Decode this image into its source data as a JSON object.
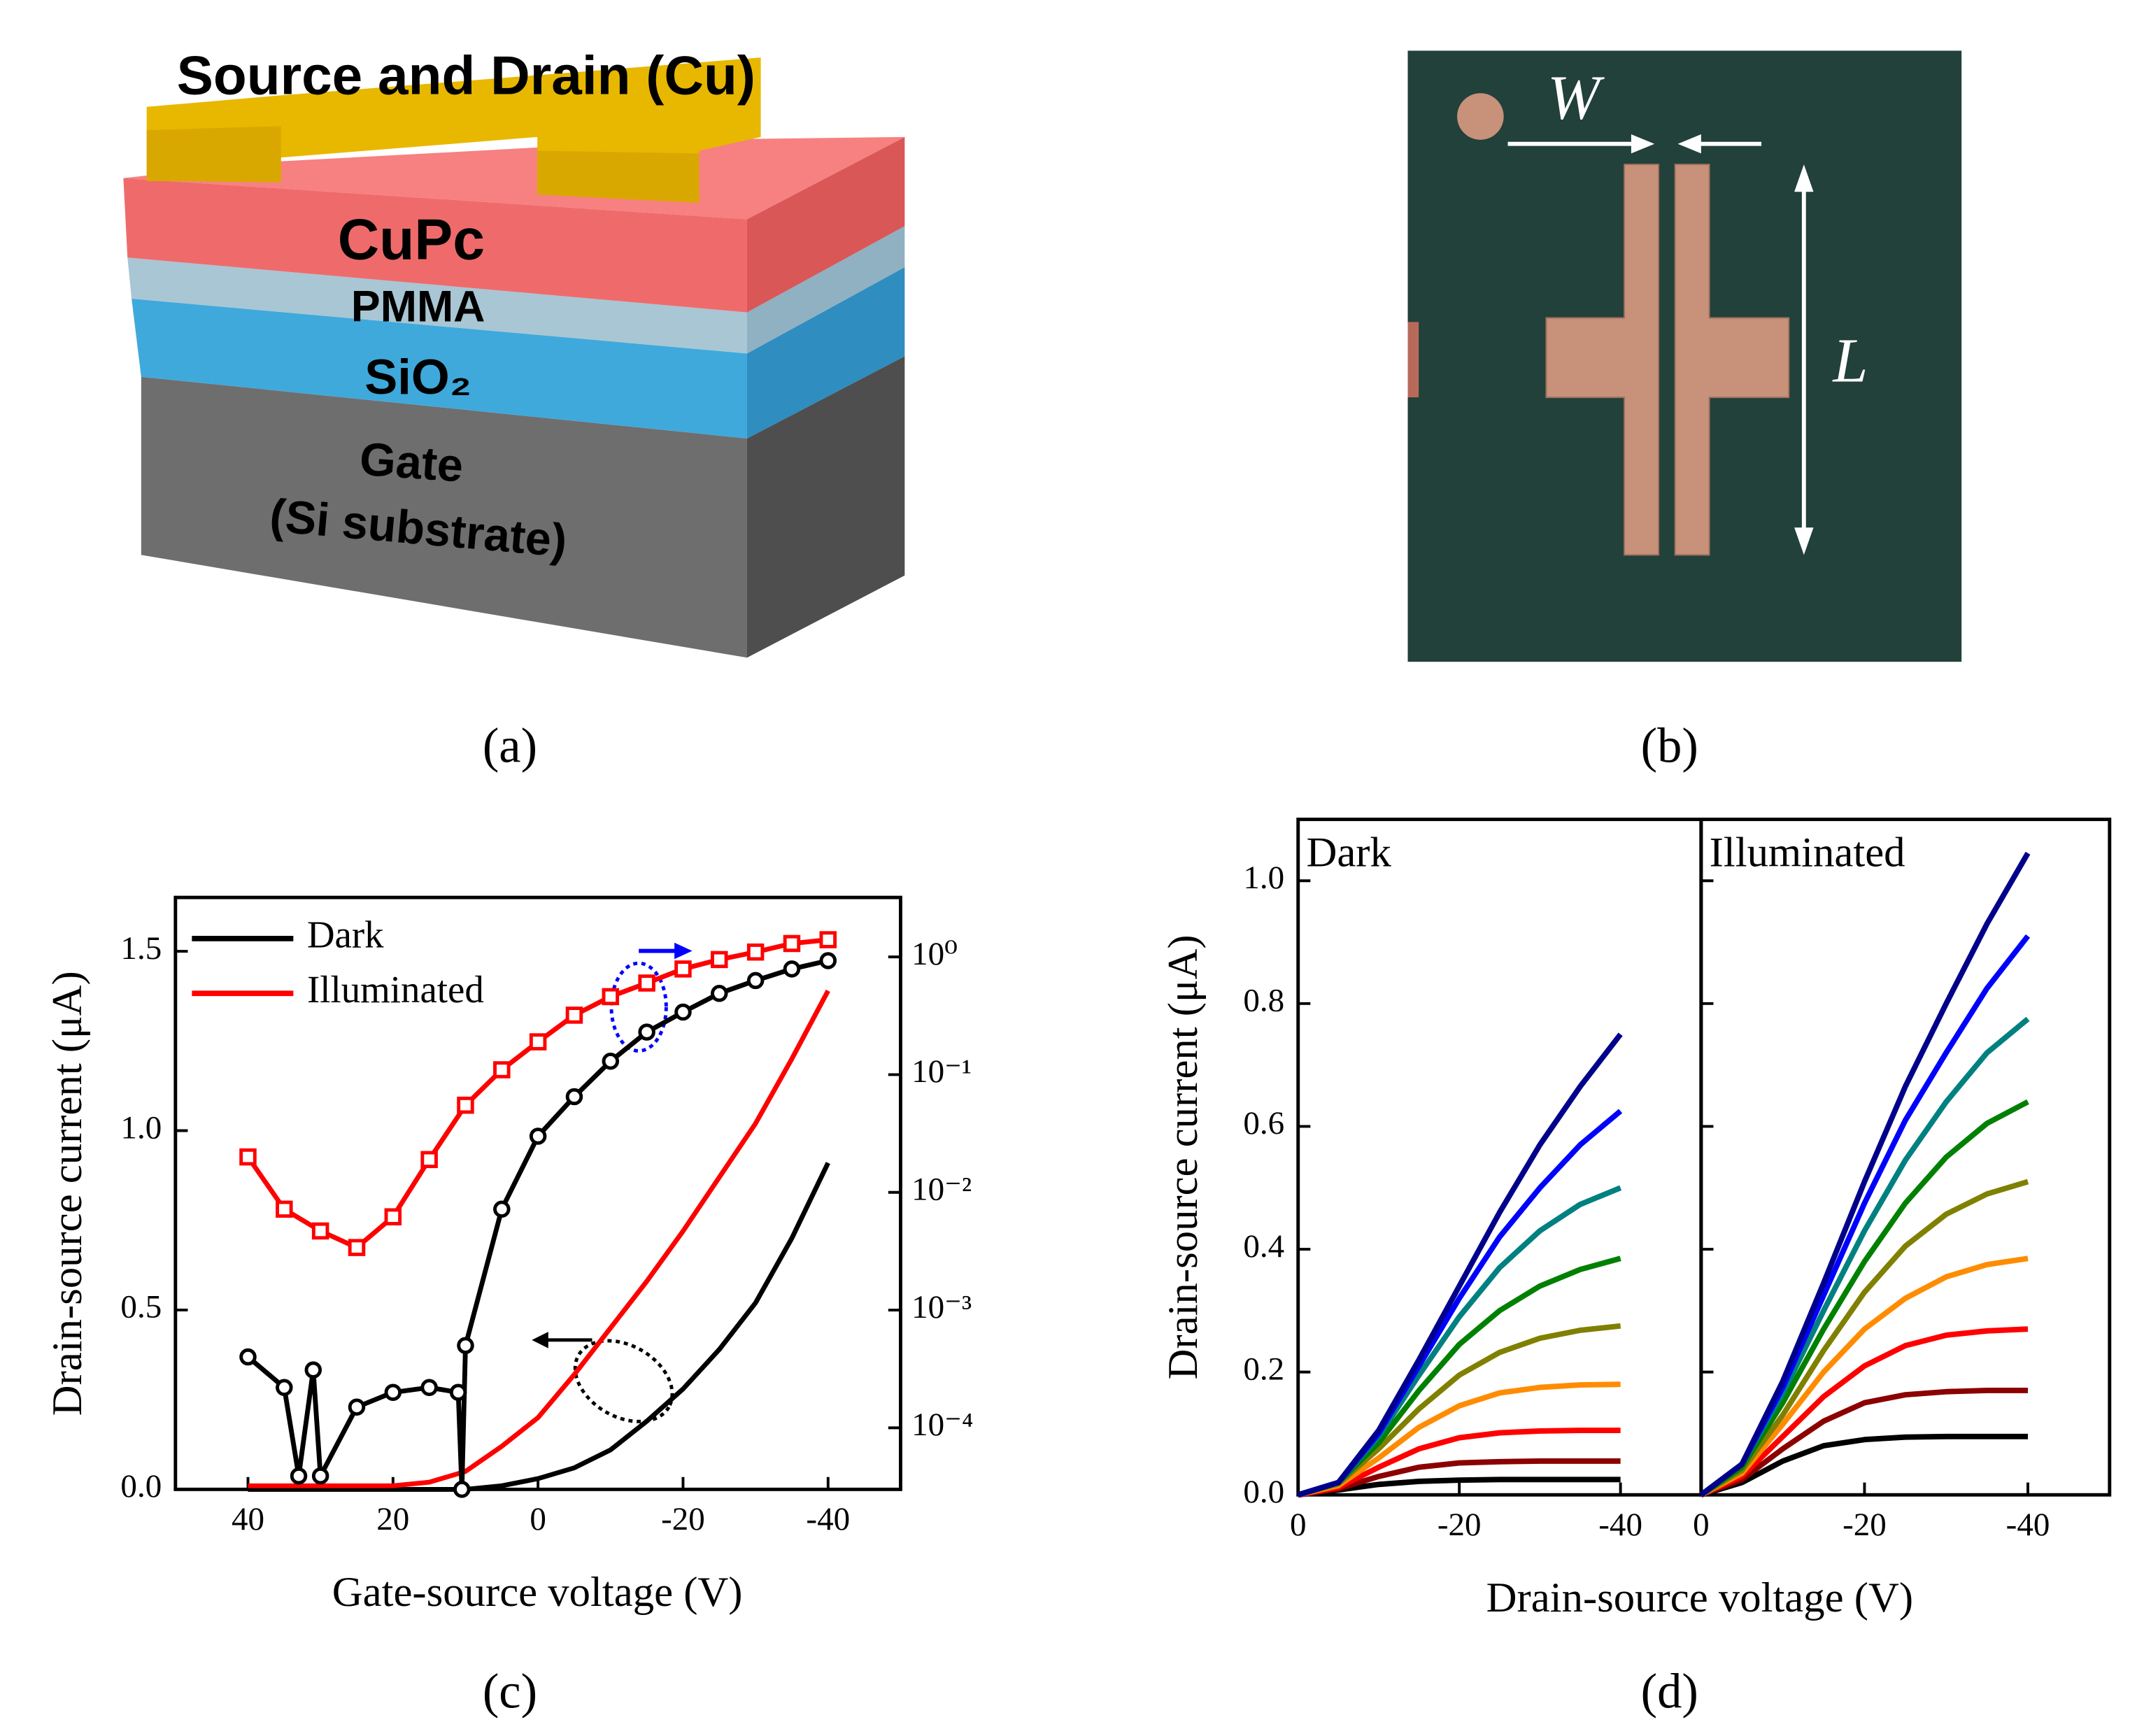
{
  "diagram": {
    "cu_label": "Source and Drain (Cu)",
    "layers": [
      "CuPc",
      "PMMA",
      "SiO₂",
      "Gate",
      "(Si substrate)"
    ]
  },
  "photo": {
    "width_label": "W",
    "length_label": "L"
  },
  "panel_labels": [
    "(a)",
    "(b)",
    "(c)",
    "(d)"
  ],
  "chart_data": [
    {
      "type": "line",
      "xlabel": "Gate-source voltage (V)",
      "ylabel": "Drain-source current (μA)",
      "x": [
        40,
        35,
        30,
        25,
        20,
        15,
        10,
        5,
        0,
        -5,
        -10,
        -15,
        -20,
        -25,
        -30,
        -35,
        -40
      ],
      "xlim": [
        50,
        -50
      ],
      "xticks": [
        40,
        20,
        0,
        -20,
        -40
      ],
      "ylim": [
        0,
        1.65
      ],
      "yticks": [
        {
          "value": 0,
          "label": "0.0"
        },
        0.5,
        {
          "value": 1,
          "label": "1.0"
        },
        1.5
      ],
      "y2scale": "log",
      "y2lim": [
        3e-05,
        3.2
      ],
      "y2ticks": [
        {
          "value": 0.0001,
          "label": "10⁻⁴"
        },
        {
          "value": 0.001,
          "label": "10⁻³"
        },
        {
          "value": 0.01,
          "label": "10⁻²"
        },
        {
          "value": 0.1,
          "label": "10⁻¹"
        },
        {
          "value": 1,
          "label": "10⁰"
        }
      ],
      "legend": "upper left",
      "series": [
        {
          "name": "Dark",
          "color": "#000000",
          "values": [
            0,
            0,
            0,
            0,
            0,
            0,
            0,
            0.01,
            0.03,
            0.06,
            0.11,
            0.19,
            0.28,
            0.39,
            0.52,
            0.7,
            0.91
          ]
        },
        {
          "name": "Illuminated",
          "color": "#ff0000",
          "values": [
            0.01,
            0.01,
            0.01,
            0.01,
            0.01,
            0.02,
            0.05,
            0.12,
            0.2,
            0.32,
            0.45,
            0.58,
            0.72,
            0.87,
            1.02,
            1.2,
            1.39
          ]
        },
        {
          "color": "#000000",
          "axis": "y2",
          "marker": "circle",
          "x": [
            40,
            35,
            33,
            31,
            30,
            25,
            20,
            15,
            11,
            10.5,
            10,
            5,
            0,
            -5,
            -10,
            -15,
            -20,
            -25,
            -30,
            -35,
            -40
          ],
          "values": [
            0.0004,
            0.00022,
            3.9e-05,
            0.00031,
            3.9e-05,
            0.00015,
            0.0002,
            0.00022,
            0.0002,
            3e-05,
            0.0005,
            0.0072,
            0.03,
            0.065,
            0.13,
            0.23,
            0.34,
            0.49,
            0.63,
            0.79,
            0.93
          ]
        },
        {
          "color": "#ff0000",
          "axis": "y2",
          "marker": "square",
          "values": [
            0.02,
            0.0072,
            0.0047,
            0.0034,
            0.0062,
            0.019,
            0.055,
            0.11,
            0.19,
            0.32,
            0.46,
            0.6,
            0.79,
            0.95,
            1.1,
            1.3,
            1.4
          ]
        }
      ]
    },
    {
      "type": "line",
      "title": "Dark",
      "xlabel": "Drain-source voltage (V)",
      "ylabel": "Drain-source current (μA)",
      "x": [
        0,
        -5,
        -10,
        -15,
        -20,
        -25,
        -30,
        -35,
        -40
      ],
      "xlim": [
        0,
        -50
      ],
      "xticks": [
        0,
        -20,
        -40
      ],
      "ylim": [
        0,
        1.1
      ],
      "yticks": [
        {
          "value": 0,
          "label": "0.0"
        },
        0.2,
        0.4,
        0.6,
        0.8,
        {
          "value": 1,
          "label": "1.0"
        }
      ],
      "series": [
        {
          "color": "#000000",
          "values": [
            0,
            0.008,
            0.017,
            0.022,
            0.024,
            0.025,
            0.025,
            0.025,
            0.025
          ]
        },
        {
          "color": "#8b0000",
          "values": [
            0,
            0.01,
            0.03,
            0.045,
            0.052,
            0.054,
            0.055,
            0.055,
            0.055
          ]
        },
        {
          "color": "#ff0000",
          "values": [
            0,
            0.012,
            0.045,
            0.075,
            0.093,
            0.101,
            0.104,
            0.105,
            0.105
          ]
        },
        {
          "color": "#ff8c00",
          "values": [
            0,
            0.015,
            0.06,
            0.11,
            0.145,
            0.166,
            0.175,
            0.179,
            0.18
          ]
        },
        {
          "color": "#808000",
          "values": [
            0,
            0.018,
            0.075,
            0.14,
            0.195,
            0.232,
            0.255,
            0.268,
            0.275
          ]
        },
        {
          "color": "#008000",
          "values": [
            0,
            0.02,
            0.085,
            0.17,
            0.245,
            0.3,
            0.34,
            0.367,
            0.385
          ]
        },
        {
          "color": "#008080",
          "values": [
            0,
            0.02,
            0.095,
            0.195,
            0.29,
            0.37,
            0.43,
            0.473,
            0.5
          ]
        },
        {
          "color": "#0000ff",
          "values": [
            0,
            0.02,
            0.1,
            0.21,
            0.32,
            0.42,
            0.5,
            0.57,
            0.625
          ]
        },
        {
          "color": "#00008b",
          "values": [
            0,
            0.02,
            0.105,
            0.22,
            0.34,
            0.46,
            0.57,
            0.665,
            0.75
          ]
        }
      ]
    },
    {
      "type": "line",
      "title": "Illuminated",
      "x": [
        0,
        -5,
        -10,
        -15,
        -20,
        -25,
        -30,
        -35,
        -40
      ],
      "xlim": [
        0,
        -50
      ],
      "xticks": [
        0,
        -20,
        -40
      ],
      "ylim": [
        0,
        1.1
      ],
      "series": [
        {
          "color": "#000000",
          "values": [
            0,
            0.02,
            0.055,
            0.08,
            0.09,
            0.094,
            0.095,
            0.095,
            0.095
          ]
        },
        {
          "color": "#8b0000",
          "values": [
            0,
            0.025,
            0.075,
            0.12,
            0.15,
            0.163,
            0.168,
            0.17,
            0.17
          ]
        },
        {
          "color": "#ff0000",
          "values": [
            0,
            0.03,
            0.095,
            0.16,
            0.21,
            0.243,
            0.26,
            0.267,
            0.27
          ]
        },
        {
          "color": "#ff8c00",
          "values": [
            0,
            0.035,
            0.115,
            0.2,
            0.27,
            0.32,
            0.355,
            0.375,
            0.385
          ]
        },
        {
          "color": "#808000",
          "values": [
            0,
            0.04,
            0.13,
            0.235,
            0.33,
            0.405,
            0.457,
            0.49,
            0.51
          ]
        },
        {
          "color": "#008000",
          "values": [
            0,
            0.045,
            0.15,
            0.27,
            0.38,
            0.475,
            0.55,
            0.605,
            0.64
          ]
        },
        {
          "color": "#008080",
          "values": [
            0,
            0.05,
            0.165,
            0.3,
            0.43,
            0.545,
            0.64,
            0.72,
            0.775
          ]
        },
        {
          "color": "#0000ff",
          "values": [
            0,
            0.05,
            0.175,
            0.325,
            0.475,
            0.61,
            0.72,
            0.825,
            0.91
          ]
        },
        {
          "color": "#00008b",
          "values": [
            0,
            0.05,
            0.185,
            0.345,
            0.51,
            0.665,
            0.8,
            0.93,
            1.045
          ]
        }
      ]
    }
  ]
}
